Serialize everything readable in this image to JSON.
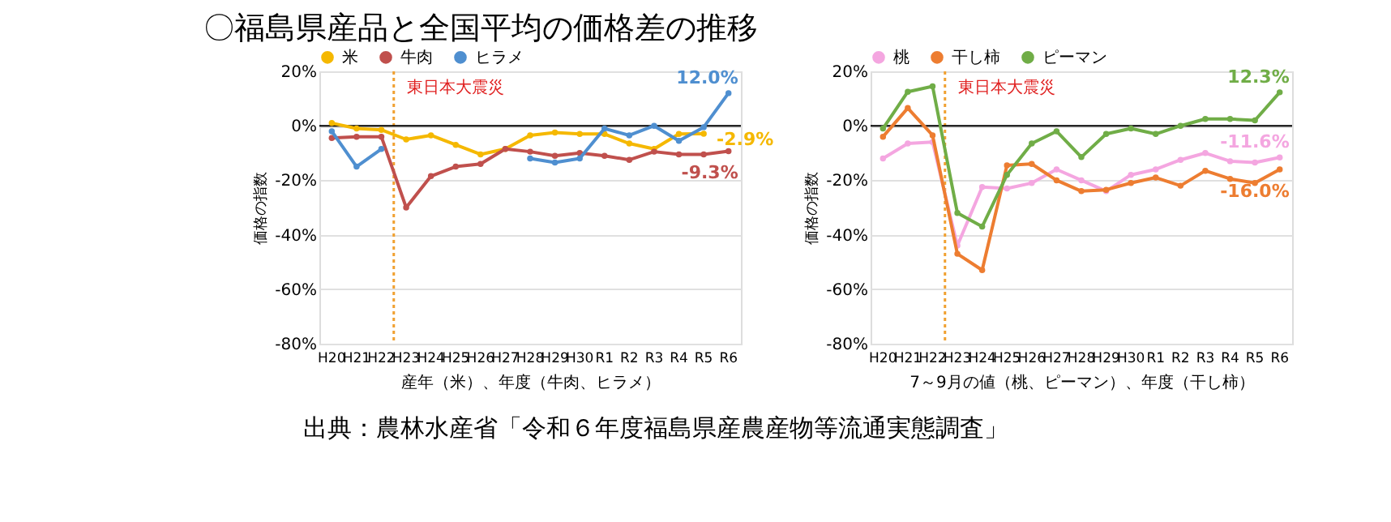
{
  "chart_data": [
    {
      "type": "line",
      "title": "〇福島県産品と全国平均の価格差の推移",
      "xlabel": "産年（米）、年度（牛肉、ヒラメ）",
      "ylabel": "価格の指数",
      "categories": [
        "H20",
        "H21",
        "H22",
        "H23",
        "H24",
        "H25",
        "H26",
        "H27",
        "H28",
        "H29",
        "H30",
        "R1",
        "R2",
        "R3",
        "R4",
        "R5",
        "R6"
      ],
      "series": [
        {
          "name": "米",
          "color": "#f5b800",
          "values": [
            1,
            -1,
            -1.5,
            -5,
            -3.5,
            -7,
            -10.5,
            -8.5,
            -3.5,
            -2.5,
            -3,
            -3,
            -6.5,
            -8.5,
            -3,
            -2.9,
            null
          ],
          "value_labels": [
            null,
            null,
            null,
            null,
            null,
            null,
            null,
            null,
            null,
            null,
            null,
            null,
            null,
            null,
            null,
            "-2.9%",
            null
          ]
        },
        {
          "name": "牛肉",
          "color": "#c0504d",
          "values": [
            -4.5,
            -4,
            -4,
            -30,
            -18.5,
            -15,
            -14,
            -8.5,
            -9.5,
            -11,
            -10,
            -11,
            -12.5,
            -9.5,
            -10.5,
            -10.5,
            -9.3
          ],
          "value_labels": [
            null,
            null,
            null,
            null,
            null,
            null,
            null,
            null,
            null,
            null,
            null,
            null,
            null,
            null,
            null,
            null,
            "-9.3%"
          ]
        },
        {
          "name": "ヒラメ",
          "color": "#4f8fd0",
          "values": [
            -2,
            -15,
            -8.5,
            null,
            null,
            null,
            null,
            null,
            -12,
            -13.5,
            -12,
            -1,
            -3.5,
            0,
            -5.5,
            -0.5,
            12.0
          ],
          "value_labels": [
            null,
            null,
            null,
            null,
            null,
            null,
            null,
            null,
            null,
            null,
            null,
            null,
            null,
            null,
            null,
            null,
            "12.0%"
          ]
        }
      ],
      "ylim": [
        -80,
        20
      ],
      "yticks": [
        {
          "value": -80,
          "label": "-80%"
        },
        {
          "value": -60,
          "label": "-60%"
        },
        {
          "value": -40,
          "label": "-40%"
        },
        {
          "value": -20,
          "label": "-20%"
        },
        {
          "value": 0,
          "label": "0%"
        },
        {
          "value": 20,
          "label": "20%"
        }
      ],
      "grid": "y",
      "legend": "top",
      "marker": "circle",
      "line_style": "solid",
      "ref_lines": [
        {
          "axis": "x",
          "value": "H23",
          "label": "東日本大震災",
          "color": "#f0a030",
          "line_style": "dotted"
        },
        {
          "axis": "y",
          "value": 0,
          "color": "#000000",
          "line_style": "solid"
        }
      ],
      "annotations": [
        "出典：農林水産省「令和６年度福島県産農産物等流通実態調査」"
      ]
    },
    {
      "type": "line",
      "xlabel": "7～9月の値（桃、ピーマン）、年度（干し柿）",
      "ylabel": "価格の指数",
      "categories": [
        "H20",
        "H21",
        "H22",
        "H23",
        "H24",
        "H25",
        "H26",
        "H27",
        "H28",
        "H29",
        "H30",
        "R1",
        "R2",
        "R3",
        "R4",
        "R5",
        "R6"
      ],
      "series": [
        {
          "name": "桃",
          "color": "#f4a6e0",
          "values": [
            -12,
            -6.5,
            -6,
            -44,
            -22.5,
            -23,
            -21,
            -16,
            -20,
            -24,
            -18,
            -16,
            -12.5,
            -10,
            -13,
            -13.5,
            -11.6
          ],
          "value_labels": [
            null,
            null,
            null,
            null,
            null,
            null,
            null,
            null,
            null,
            null,
            null,
            null,
            null,
            null,
            null,
            null,
            "-11.6%"
          ]
        },
        {
          "name": "干し柿",
          "color": "#ed7d31",
          "values": [
            -4,
            6.5,
            -3.5,
            -47,
            -53,
            -14.5,
            -14,
            -20,
            -24,
            -23.5,
            -21,
            -19,
            -22,
            -16.5,
            -19.5,
            -21,
            -16.0
          ],
          "value_labels": [
            null,
            null,
            null,
            null,
            null,
            null,
            null,
            null,
            null,
            null,
            null,
            null,
            null,
            null,
            null,
            null,
            "-16.0%"
          ]
        },
        {
          "name": "ピーマン",
          "color": "#70ad47",
          "values": [
            -1,
            12.5,
            14.5,
            -32,
            -37,
            -18,
            -6.5,
            -2,
            -11.5,
            -3,
            -1,
            -3,
            0,
            2.5,
            2.5,
            2,
            12.3
          ],
          "value_labels": [
            null,
            null,
            null,
            null,
            null,
            null,
            null,
            null,
            null,
            null,
            null,
            null,
            null,
            null,
            null,
            null,
            "12.3%"
          ]
        }
      ],
      "ylim": [
        -80,
        20
      ],
      "yticks": [
        {
          "value": -80,
          "label": "-80%"
        },
        {
          "value": -60,
          "label": "-60%"
        },
        {
          "value": -40,
          "label": "-40%"
        },
        {
          "value": -20,
          "label": "-20%"
        },
        {
          "value": 0,
          "label": "0%"
        },
        {
          "value": 20,
          "label": "20%"
        }
      ],
      "grid": "y",
      "legend": "top",
      "marker": "circle",
      "line_style": "solid",
      "ref_lines": [
        {
          "axis": "x",
          "value": "H23",
          "label": "東日本大震災",
          "color": "#f0a030",
          "line_style": "dotted"
        },
        {
          "axis": "y",
          "value": 0,
          "color": "#000000",
          "line_style": "solid"
        }
      ]
    }
  ]
}
